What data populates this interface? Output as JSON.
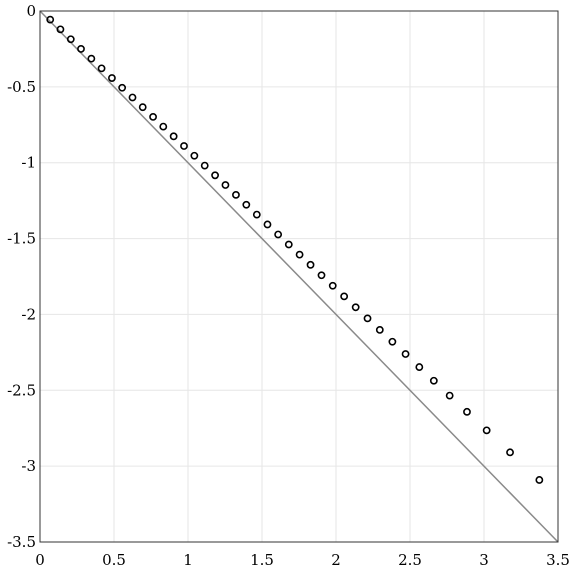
{
  "chart_data": {
    "type": "scatter",
    "title": "",
    "xlabel": "",
    "ylabel": "",
    "xlim": [
      0,
      3.5
    ],
    "ylim": [
      -3.5,
      0
    ],
    "grid": true,
    "x_ticks": [
      0,
      0.5,
      1,
      1.5,
      2,
      2.5,
      3,
      3.5
    ],
    "x_tick_labels": [
      "0",
      "0.5",
      "1",
      "1.5",
      "2",
      "2.5",
      "3",
      "3.5"
    ],
    "y_ticks": [
      0,
      -0.5,
      -1,
      -1.5,
      -2,
      -2.5,
      -3,
      -3.5
    ],
    "y_tick_labels": [
      "0",
      "-0.5",
      "-1",
      "-1.5",
      "-2",
      "-2.5",
      "-3",
      "-3.5"
    ],
    "reference_line": {
      "x": [
        0,
        3.5
      ],
      "y": [
        0,
        -3.5
      ],
      "color": "#8a8a8a"
    },
    "series": [
      {
        "marker": "circle",
        "color": "#000000",
        "x": [
          0.069,
          0.138,
          0.208,
          0.277,
          0.347,
          0.416,
          0.486,
          0.555,
          0.625,
          0.694,
          0.764,
          0.833,
          0.903,
          0.973,
          1.043,
          1.113,
          1.183,
          1.253,
          1.324,
          1.394,
          1.465,
          1.537,
          1.609,
          1.681,
          1.754,
          1.828,
          1.902,
          1.978,
          2.055,
          2.133,
          2.213,
          2.296,
          2.381,
          2.47,
          2.563,
          2.661,
          2.768,
          2.885,
          3.018,
          3.176,
          3.374
        ],
        "y": [
          -0.057,
          -0.121,
          -0.186,
          -0.25,
          -0.314,
          -0.378,
          -0.442,
          -0.506,
          -0.57,
          -0.634,
          -0.698,
          -0.762,
          -0.826,
          -0.89,
          -0.954,
          -1.019,
          -1.083,
          -1.147,
          -1.212,
          -1.277,
          -1.342,
          -1.407,
          -1.473,
          -1.539,
          -1.606,
          -1.673,
          -1.742,
          -1.811,
          -1.881,
          -1.953,
          -2.026,
          -2.102,
          -2.18,
          -2.261,
          -2.347,
          -2.437,
          -2.535,
          -2.642,
          -2.764,
          -2.909,
          -3.091
        ]
      }
    ]
  }
}
